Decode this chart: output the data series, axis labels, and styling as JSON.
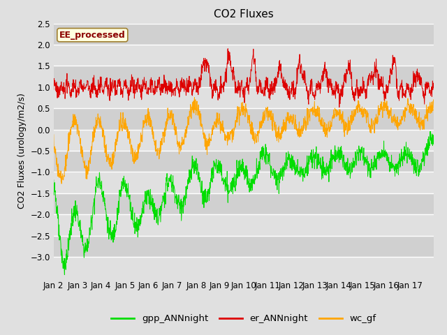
{
  "title": "CO2 Fluxes",
  "ylabel": "CO2 Fluxes (urology/m2/s)",
  "ylim": [
    -3.5,
    2.5
  ],
  "yticks": [
    -3.0,
    -2.5,
    -2.0,
    -1.5,
    -1.0,
    -0.5,
    0.0,
    0.5,
    1.0,
    1.5,
    2.0,
    2.5
  ],
  "xtick_labels": [
    "Jan 2",
    "Jan 3",
    "Jan 4",
    "Jan 5",
    "Jan 6",
    "Jan 7",
    "Jan 8",
    "Jan 9",
    "Jan 10",
    "Jan 11",
    "Jan 12",
    "Jan 13",
    "Jan 14",
    "Jan 15",
    "Jan 16",
    "Jan 17"
  ],
  "annotation_text": "EE_processed",
  "annotation_color": "#8B0000",
  "annotation_bg": "#FFFFE0",
  "annotation_edge": "#A08030",
  "line_colors": {
    "gpp": "#00DD00",
    "er": "#DD0000",
    "wc": "#FFA500"
  },
  "legend_labels": [
    "gpp_ANNnight",
    "er_ANNnight",
    "wc_gf"
  ],
  "bg_light": "#DCDCDC",
  "bg_dark": "#C8C8C8",
  "title_fontsize": 11,
  "label_fontsize": 9,
  "tick_fontsize": 8.5
}
